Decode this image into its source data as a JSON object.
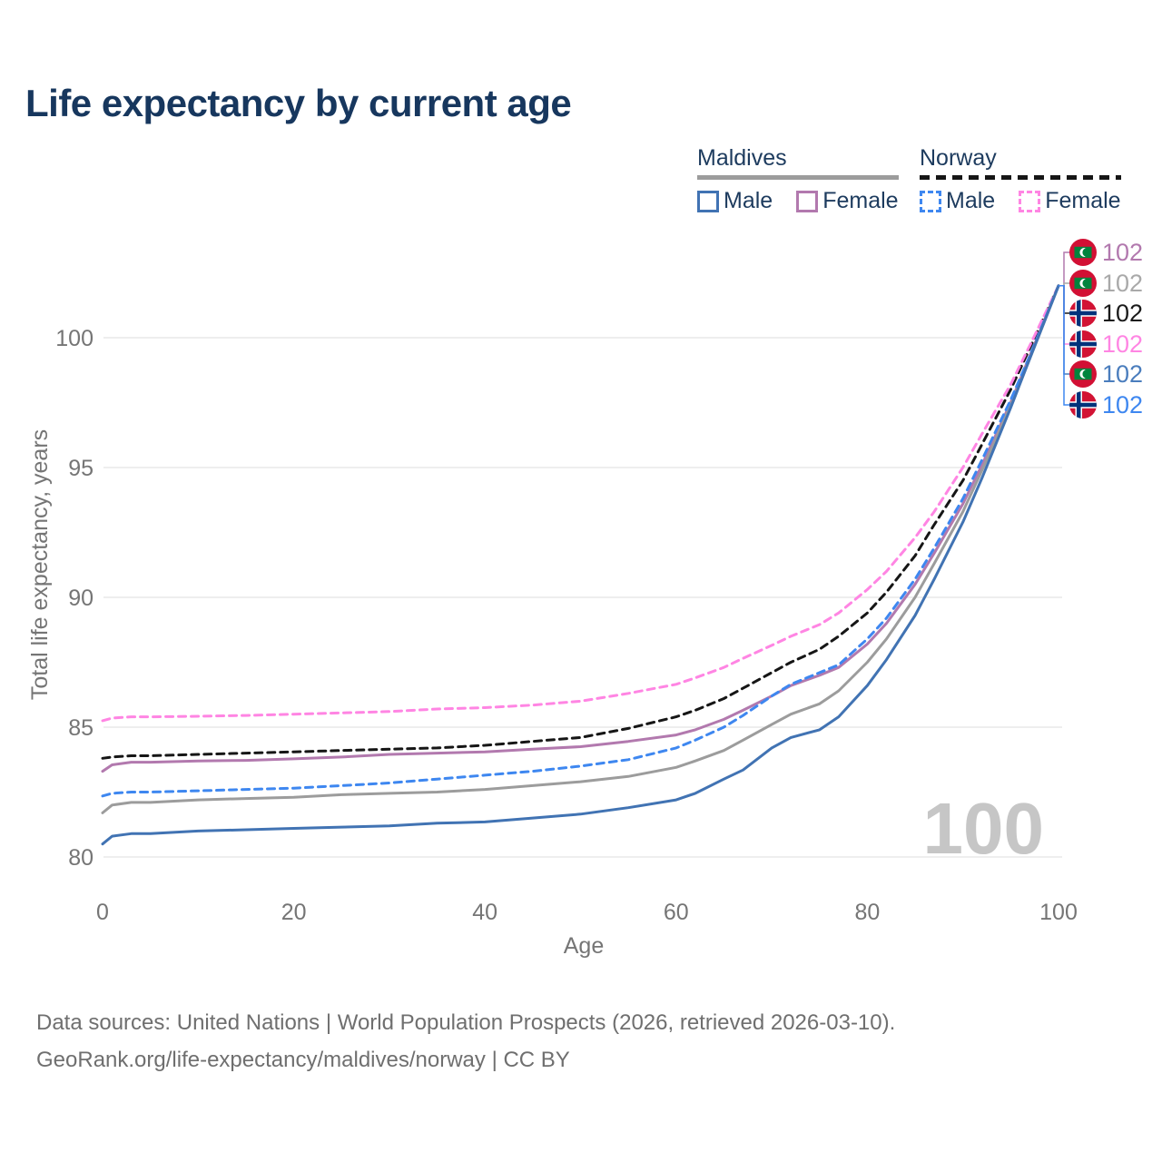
{
  "header": {
    "title": "Life expectancy by current age"
  },
  "legend": {
    "groups": [
      {
        "title": "Maldives",
        "line_style": "solid",
        "underline_series": "maldives_total",
        "items": [
          {
            "label": "Male",
            "series": "maldives_male"
          },
          {
            "label": "Female",
            "series": "maldives_female"
          }
        ]
      },
      {
        "title": "Norway",
        "line_style": "dashed",
        "underline_series": "norway_total",
        "items": [
          {
            "label": "Male",
            "series": "norway_male"
          },
          {
            "label": "Female",
            "series": "norway_female"
          }
        ]
      }
    ]
  },
  "footer": {
    "line1": "Data sources: United Nations | World Population Prospects (2026, retrieved 2026-03-10).",
    "line2": "GeoRank.org/life-expectancy/maldives/norway | CC BY"
  },
  "chart_data": {
    "type": "line",
    "title": "Life expectancy by current age",
    "xlabel": "Age",
    "ylabel": "Total life expectancy, years",
    "xlim": [
      0,
      100
    ],
    "ylim": [
      79,
      103
    ],
    "xticks": [
      0,
      20,
      40,
      60,
      80,
      100
    ],
    "yticks": [
      80,
      85,
      90,
      95,
      100
    ],
    "grid": "horizontal-only",
    "watermark": "100",
    "x": [
      0,
      1,
      3,
      5,
      10,
      15,
      20,
      25,
      30,
      35,
      40,
      45,
      50,
      55,
      60,
      62,
      65,
      67,
      70,
      72,
      75,
      77,
      80,
      82,
      85,
      87,
      90,
      92,
      95,
      97,
      100
    ],
    "series": [
      {
        "id": "norway_total",
        "name": "Norway — Both sexes",
        "country": "norway",
        "dash": true,
        "color": "#161616",
        "label_color": "#1a1a1a",
        "values": [
          83.8,
          83.85,
          83.9,
          83.9,
          83.95,
          84.0,
          84.05,
          84.1,
          84.15,
          84.2,
          84.3,
          84.45,
          84.6,
          84.95,
          85.4,
          85.65,
          86.1,
          86.5,
          87.1,
          87.5,
          88.0,
          88.5,
          89.4,
          90.2,
          91.6,
          92.8,
          94.5,
          95.9,
          98.0,
          99.6,
          102
        ]
      },
      {
        "id": "norway_female",
        "name": "Norway — Female",
        "country": "norway",
        "dash": true,
        "color": "#ff85e3",
        "label_color": "#ff85e3",
        "values": [
          85.25,
          85.35,
          85.4,
          85.4,
          85.42,
          85.45,
          85.5,
          85.55,
          85.6,
          85.7,
          85.75,
          85.85,
          86.0,
          86.3,
          86.65,
          86.9,
          87.3,
          87.65,
          88.15,
          88.5,
          88.95,
          89.4,
          90.3,
          91.0,
          92.3,
          93.3,
          95.0,
          96.3,
          98.2,
          99.7,
          102
        ]
      },
      {
        "id": "maldives_female",
        "name": "Maldives — Female",
        "country": "maldives",
        "dash": false,
        "color": "#b279ae",
        "label_color": "#b279ae",
        "values": [
          83.3,
          83.55,
          83.65,
          83.65,
          83.7,
          83.72,
          83.78,
          83.85,
          83.95,
          84.0,
          84.05,
          84.15,
          84.25,
          84.45,
          84.7,
          84.9,
          85.3,
          85.65,
          86.2,
          86.6,
          87.0,
          87.3,
          88.2,
          89.0,
          90.5,
          91.7,
          93.6,
          95.1,
          97.5,
          99.3,
          102
        ]
      },
      {
        "id": "maldives_total",
        "name": "Maldives — Both sexes",
        "country": "maldives",
        "dash": false,
        "color": "#9c9c9c",
        "label_color": "#a9a9a9",
        "values": [
          81.7,
          82.0,
          82.1,
          82.1,
          82.2,
          82.25,
          82.3,
          82.4,
          82.45,
          82.5,
          82.6,
          82.75,
          82.9,
          83.1,
          83.45,
          83.7,
          84.1,
          84.5,
          85.1,
          85.5,
          85.9,
          86.4,
          87.5,
          88.4,
          90.0,
          91.3,
          93.3,
          94.9,
          97.4,
          99.2,
          102
        ]
      },
      {
        "id": "norway_male",
        "name": "Norway — Male",
        "country": "norway",
        "dash": true,
        "color": "#3e87f0",
        "label_color": "#3e87f0",
        "values": [
          82.35,
          82.45,
          82.5,
          82.5,
          82.55,
          82.6,
          82.65,
          82.75,
          82.85,
          83.0,
          83.15,
          83.3,
          83.5,
          83.75,
          84.2,
          84.5,
          85.0,
          85.45,
          86.2,
          86.65,
          87.1,
          87.4,
          88.4,
          89.2,
          90.7,
          91.9,
          93.8,
          95.3,
          97.6,
          99.3,
          102
        ]
      },
      {
        "id": "maldives_male",
        "name": "Maldives — Male",
        "country": "maldives",
        "dash": false,
        "color": "#4173b3",
        "label_color": "#4a7dbd",
        "values": [
          80.5,
          80.8,
          80.9,
          80.9,
          81.0,
          81.05,
          81.1,
          81.15,
          81.2,
          81.3,
          81.35,
          81.5,
          81.65,
          81.9,
          82.2,
          82.45,
          83.0,
          83.35,
          84.2,
          84.6,
          84.9,
          85.4,
          86.6,
          87.6,
          89.3,
          90.7,
          92.9,
          94.6,
          97.3,
          99.2,
          102
        ]
      }
    ],
    "end_labels": [
      {
        "flag": "maldives",
        "text": "102",
        "series": "maldives_female"
      },
      {
        "flag": "maldives",
        "text": "102",
        "series": "maldives_total"
      },
      {
        "flag": "norway",
        "text": "102",
        "series": "norway_total"
      },
      {
        "flag": "norway",
        "text": "102",
        "series": "norway_female"
      },
      {
        "flag": "maldives",
        "text": "102",
        "series": "maldives_male"
      },
      {
        "flag": "norway",
        "text": "102",
        "series": "norway_male"
      }
    ],
    "flag_colors": {
      "maldives": {
        "red": "#d21034",
        "green": "#00843d",
        "crescent": "#ffffff"
      },
      "norway": {
        "red": "#d21334",
        "cross_white": "#ffffff",
        "cross_blue": "#01327b"
      }
    },
    "style_colors": {
      "title_text": "#17375e",
      "legend_text": "#1d3b5e",
      "axis_text": "#757575",
      "gridline": "#e4e4e4",
      "watermark": "#c6c6c6",
      "footer_text": "#6f6f6f"
    }
  }
}
